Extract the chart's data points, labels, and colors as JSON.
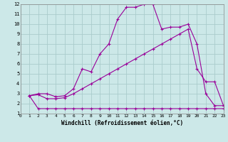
{
  "xlabel": "Windchill (Refroidissement éolien,°C)",
  "background_color": "#cce8e8",
  "grid_color": "#aacccc",
  "line_color": "#990099",
  "xmin": 0,
  "xmax": 23,
  "ymin": 1,
  "ymax": 12,
  "series1_x": [
    1,
    2,
    3,
    4,
    5,
    6,
    7,
    8,
    9,
    10,
    11,
    12,
    13,
    14,
    15,
    16,
    17,
    18,
    19,
    20,
    21,
    22,
    23
  ],
  "series1_y": [
    2.8,
    1.5,
    1.5,
    1.5,
    1.5,
    1.5,
    1.5,
    1.5,
    1.5,
    1.5,
    1.5,
    1.5,
    1.5,
    1.5,
    1.5,
    1.5,
    1.5,
    1.5,
    1.5,
    1.5,
    1.5,
    1.5,
    1.5
  ],
  "series2_x": [
    1,
    2,
    3,
    4,
    5,
    6,
    7,
    8,
    9,
    10,
    11,
    12,
    13,
    14,
    15,
    16,
    17,
    18,
    19,
    20,
    21,
    22,
    23
  ],
  "series2_y": [
    2.8,
    2.9,
    2.5,
    2.5,
    2.6,
    3.0,
    3.5,
    4.0,
    4.5,
    5.0,
    5.5,
    6.0,
    6.5,
    7.0,
    7.5,
    8.0,
    8.5,
    9.0,
    9.5,
    5.5,
    4.2,
    4.2,
    1.8
  ],
  "series3_x": [
    1,
    2,
    3,
    4,
    5,
    6,
    7,
    8,
    9,
    10,
    11,
    12,
    13,
    14,
    15,
    16,
    17,
    18,
    19,
    20,
    21,
    22,
    23
  ],
  "series3_y": [
    2.8,
    3.0,
    3.0,
    2.7,
    2.8,
    3.5,
    5.5,
    5.2,
    7.0,
    8.0,
    10.5,
    11.7,
    11.7,
    12.0,
    12.0,
    9.5,
    9.7,
    9.7,
    10.0,
    8.0,
    3.0,
    1.8,
    1.8
  ]
}
